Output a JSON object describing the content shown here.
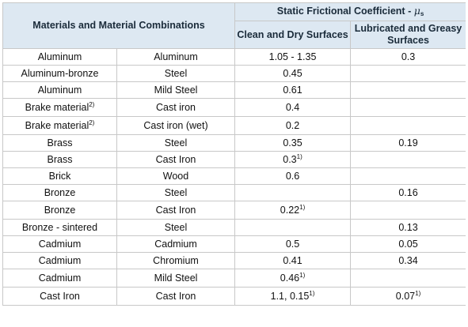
{
  "header": {
    "materials": "Materials and Material Combinations",
    "coefficient_title": "Static Frictional Coefficient - ",
    "mu_symbol": "μ",
    "mu_subscript": "s",
    "clean_dry": "Clean and Dry Surfaces",
    "lubricated": "Lubricated and Greasy Surfaces"
  },
  "rows": [
    {
      "m1": "Aluminum",
      "m1_sup": "",
      "m2": "Aluminum",
      "dry": "1.05 - 1.35",
      "dry_sup": "",
      "lub": "0.3",
      "lub_sup": ""
    },
    {
      "m1": "Aluminum-bronze",
      "m1_sup": "",
      "m2": "Steel",
      "dry": "0.45",
      "dry_sup": "",
      "lub": "",
      "lub_sup": ""
    },
    {
      "m1": "Aluminum",
      "m1_sup": "",
      "m2": "Mild Steel",
      "dry": "0.61",
      "dry_sup": "",
      "lub": "",
      "lub_sup": ""
    },
    {
      "m1": "Brake material",
      "m1_sup": "2)",
      "m2": "Cast iron",
      "dry": "0.4",
      "dry_sup": "",
      "lub": "",
      "lub_sup": ""
    },
    {
      "m1": "Brake material",
      "m1_sup": "2)",
      "m2": "Cast iron (wet)",
      "dry": "0.2",
      "dry_sup": "",
      "lub": "",
      "lub_sup": ""
    },
    {
      "m1": "Brass",
      "m1_sup": "",
      "m2": "Steel",
      "dry": "0.35",
      "dry_sup": "",
      "lub": "0.19",
      "lub_sup": ""
    },
    {
      "m1": "Brass",
      "m1_sup": "",
      "m2": "Cast Iron",
      "dry": "0.3",
      "dry_sup": "1)",
      "lub": "",
      "lub_sup": ""
    },
    {
      "m1": "Brick",
      "m1_sup": "",
      "m2": "Wood",
      "dry": "0.6",
      "dry_sup": "",
      "lub": "",
      "lub_sup": ""
    },
    {
      "m1": "Bronze",
      "m1_sup": "",
      "m2": "Steel",
      "dry": "",
      "dry_sup": "",
      "lub": "0.16",
      "lub_sup": ""
    },
    {
      "m1": "Bronze",
      "m1_sup": "",
      "m2": "Cast Iron",
      "dry": "0.22",
      "dry_sup": "1)",
      "lub": "",
      "lub_sup": ""
    },
    {
      "m1": "Bronze - sintered",
      "m1_sup": "",
      "m2": "Steel",
      "dry": "",
      "dry_sup": "",
      "lub": "0.13",
      "lub_sup": ""
    },
    {
      "m1": "Cadmium",
      "m1_sup": "",
      "m2": "Cadmium",
      "dry": "0.5",
      "dry_sup": "",
      "lub": "0.05",
      "lub_sup": ""
    },
    {
      "m1": "Cadmium",
      "m1_sup": "",
      "m2": "Chromium",
      "dry": "0.41",
      "dry_sup": "",
      "lub": "0.34",
      "lub_sup": ""
    },
    {
      "m1": "Cadmium",
      "m1_sup": "",
      "m2": "Mild Steel",
      "dry": "0.46",
      "dry_sup": "1)",
      "lub": "",
      "lub_sup": ""
    },
    {
      "m1": "Cast Iron",
      "m1_sup": "",
      "m2": "Cast Iron",
      "dry": "1.1, 0.15",
      "dry_sup": "1)",
      "lub": "0.07",
      "lub_sup": "1)"
    }
  ]
}
